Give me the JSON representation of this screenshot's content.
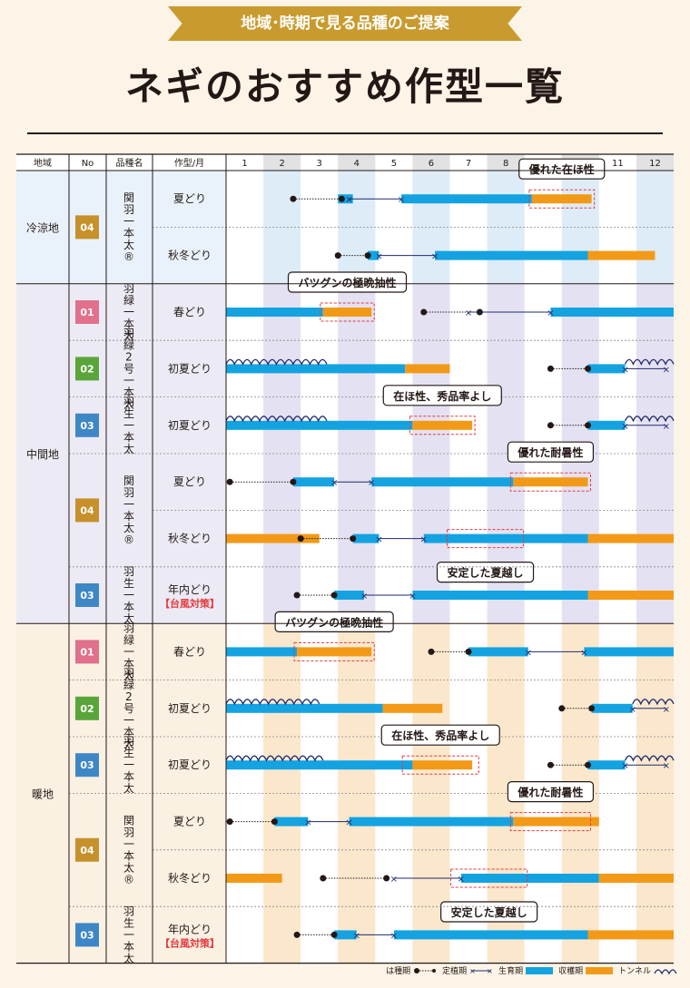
{
  "banner": "地域･時期で見る品種のご提案",
  "title": "ネギのおすすめ作型一覧",
  "headers": {
    "region": "地域",
    "no": "No",
    "variety": "品種名",
    "crop_type": "作型/月"
  },
  "months": [
    "1",
    "2",
    "3",
    "4",
    "5",
    "6",
    "7",
    "8",
    "9",
    "10",
    "11",
    "12"
  ],
  "regions": [
    {
      "name": "冷涼地",
      "rows": [
        {
          "no": "04",
          "color": "#c6902b",
          "variety": "関羽一本太®",
          "type": "夏どり",
          "sub": "",
          "sow": [
            {
              "a": 1.8,
              "b": 3.1
            }
          ],
          "plant": [
            {
              "a": 3.3,
              "b": 4.7
            }
          ],
          "grow": [
            {
              "a": 3.0,
              "b": 3.4
            },
            {
              "a": 4.7,
              "b": 8.2
            }
          ],
          "harvest": [
            {
              "a": 8.2,
              "b": 9.8
            }
          ],
          "tunnel": [],
          "callout": {
            "text": "優れた在ほ性",
            "at": 8.2,
            "to": 9.8
          }
        },
        {
          "no": "",
          "color": "",
          "variety": "",
          "type": "秋冬どり",
          "sub": "",
          "sow": [
            {
              "a": 3.0,
              "b": 3.8
            }
          ],
          "plant": [
            {
              "a": 4.1,
              "b": 5.6
            }
          ],
          "grow": [
            {
              "a": 3.8,
              "b": 4.1
            },
            {
              "a": 5.6,
              "b": 9.7
            }
          ],
          "harvest": [
            {
              "a": 9.7,
              "b": 11.5
            }
          ],
          "tunnel": [],
          "callout": null
        }
      ]
    },
    {
      "name": "中間地",
      "rows": [
        {
          "no": "01",
          "color": "#e0708b",
          "variety": "羽緑一本太",
          "type": "春どり",
          "sub": "",
          "sow": [
            {
              "a": 5.3,
              "b": 6.8
            }
          ],
          "plant": [
            {
              "a": 6.5,
              "b": 8.7
            }
          ],
          "grow": [
            {
              "a": 0,
              "b": 2.6
            },
            {
              "a": 8.7,
              "b": 12
            }
          ],
          "harvest": [
            {
              "a": 2.6,
              "b": 3.9
            }
          ],
          "tunnel": [],
          "callout": {
            "text": "バツグンの極晩抽性",
            "at": 2.6,
            "to": 3.9
          }
        },
        {
          "no": "02",
          "color": "#5aa53a",
          "variety": "羽緑2号一本太",
          "type": "初夏どり",
          "sub": "",
          "sow": [
            {
              "a": 8.7,
              "b": 9.7
            }
          ],
          "plant": [
            {
              "a": 10.7,
              "b": 11.8
            }
          ],
          "grow": [
            {
              "a": 0,
              "b": 4.8
            },
            {
              "a": 9.7,
              "b": 10.7
            }
          ],
          "harvest": [
            {
              "a": 4.8,
              "b": 6
            }
          ],
          "tunnel": [
            {
              "a": 0,
              "b": 2.7
            },
            {
              "a": 10.7,
              "b": 12
            }
          ],
          "callout": null
        },
        {
          "no": "03",
          "color": "#3e87c6",
          "variety": "羽生一本太",
          "type": "初夏どり",
          "sub": "",
          "sow": [
            {
              "a": 8.7,
              "b": 9.7
            }
          ],
          "plant": [
            {
              "a": 10.7,
              "b": 11.8
            }
          ],
          "grow": [
            {
              "a": 0,
              "b": 5
            },
            {
              "a": 9.7,
              "b": 10.7
            }
          ],
          "harvest": [
            {
              "a": 5,
              "b": 6.6
            }
          ],
          "tunnel": [
            {
              "a": 0,
              "b": 2.7
            },
            {
              "a": 10.7,
              "b": 12
            }
          ],
          "callout": {
            "text": "在ほ性、秀品率よし",
            "at": 5,
            "to": 6.6
          }
        },
        {
          "no": "04",
          "color": "#c6902b",
          "variety": "関羽一本太®",
          "type": "夏どり",
          "sub": "",
          "sow": [
            {
              "a": 0.1,
              "b": 1.8
            }
          ],
          "plant": [
            {
              "a": 2.9,
              "b": 3.9
            }
          ],
          "grow": [
            {
              "a": 1.8,
              "b": 2.9
            },
            {
              "a": 3.9,
              "b": 7.7
            }
          ],
          "harvest": [
            {
              "a": 7.7,
              "b": 9.7
            }
          ],
          "tunnel": [],
          "callout": {
            "text": "優れた耐暑性",
            "at": 7.7,
            "to": 9.7
          }
        },
        {
          "no": "",
          "color": "",
          "variety": "",
          "type": "秋冬どり",
          "sub": "",
          "sow": [
            {
              "a": 2,
              "b": 3.4
            }
          ],
          "plant": [
            {
              "a": 4.1,
              "b": 5.3
            }
          ],
          "grow": [
            {
              "a": 3.4,
              "b": 4.1
            },
            {
              "a": 5.3,
              "b": 9.7
            }
          ],
          "harvest": [
            {
              "a": 0,
              "b": 2.5
            },
            {
              "a": 9.7,
              "b": 12
            }
          ],
          "tunnel": [],
          "callout": {
            "text": "安定した夏越し",
            "at": 6,
            "to": 7.9
          }
        },
        {
          "no": "03",
          "color": "#3e87c6",
          "variety": "羽生一本太",
          "type": "年内どり",
          "sub": "【台風対策】",
          "sow": [
            {
              "a": 1.9,
              "b": 2.9
            }
          ],
          "plant": [
            {
              "a": 3.7,
              "b": 5
            }
          ],
          "grow": [
            {
              "a": 2.9,
              "b": 3.7
            },
            {
              "a": 5,
              "b": 9.7
            }
          ],
          "harvest": [
            {
              "a": 9.7,
              "b": 12
            }
          ],
          "tunnel": [],
          "callout": null
        }
      ]
    },
    {
      "name": "暖地",
      "rows": [
        {
          "no": "01",
          "color": "#e0708b",
          "variety": "羽緑一本太",
          "type": "春どり",
          "sub": "",
          "sow": [
            {
              "a": 5.5,
              "b": 6.5
            }
          ],
          "plant": [
            {
              "a": 8.1,
              "b": 9.6
            }
          ],
          "grow": [
            {
              "a": 0,
              "b": 1.9
            },
            {
              "a": 6.5,
              "b": 8.1
            },
            {
              "a": 9.6,
              "b": 12
            }
          ],
          "harvest": [
            {
              "a": 1.9,
              "b": 3.9
            }
          ],
          "tunnel": [],
          "callout": {
            "text": "バツグンの極晩抽性",
            "at": 1.9,
            "to": 3.9
          }
        },
        {
          "no": "02",
          "color": "#5aa53a",
          "variety": "羽緑2号一本太",
          "type": "初夏どり",
          "sub": "",
          "sow": [
            {
              "a": 9,
              "b": 9.8
            }
          ],
          "plant": [
            {
              "a": 10.9,
              "b": 11.8
            }
          ],
          "grow": [
            {
              "a": 0,
              "b": 4.2
            },
            {
              "a": 9.8,
              "b": 10.9
            }
          ],
          "harvest": [
            {
              "a": 4.2,
              "b": 5.8
            }
          ],
          "tunnel": [
            {
              "a": 0,
              "b": 2.5
            },
            {
              "a": 10.9,
              "b": 12
            }
          ],
          "callout": null
        },
        {
          "no": "03",
          "color": "#3e87c6",
          "variety": "羽生一本太",
          "type": "初夏どり",
          "sub": "",
          "sow": [
            {
              "a": 8.7,
              "b": 9.7
            }
          ],
          "plant": [
            {
              "a": 10.7,
              "b": 11.8
            }
          ],
          "grow": [
            {
              "a": 0,
              "b": 5
            },
            {
              "a": 9.7,
              "b": 10.7
            }
          ],
          "harvest": [
            {
              "a": 5,
              "b": 6.6
            }
          ],
          "tunnel": [
            {
              "a": 0,
              "b": 2.6
            },
            {
              "a": 10.7,
              "b": 12
            }
          ],
          "callout": {
            "text": "在ほ性、秀品率よし",
            "at": 4.8,
            "to": 6.7
          }
        },
        {
          "no": "04",
          "color": "#c6902b",
          "variety": "関羽一本太®",
          "type": "夏どり",
          "sub": "",
          "sow": [
            {
              "a": 0.1,
              "b": 1.3
            }
          ],
          "plant": [
            {
              "a": 2.2,
              "b": 3.3
            }
          ],
          "grow": [
            {
              "a": 1.3,
              "b": 2.2
            },
            {
              "a": 3.3,
              "b": 7.7
            }
          ],
          "harvest": [
            {
              "a": 7.7,
              "b": 10
            }
          ],
          "tunnel": [],
          "callout": {
            "text": "優れた耐暑性",
            "at": 7.7,
            "to": 9.7
          }
        },
        {
          "no": "",
          "color": "",
          "variety": "",
          "type": "秋冬どり",
          "sub": "",
          "sow": [
            {
              "a": 2.6,
              "b": 4.3
            }
          ],
          "plant": [
            {
              "a": 4.5,
              "b": 6.3
            }
          ],
          "grow": [
            {
              "a": 6.3,
              "b": 10
            }
          ],
          "harvest": [
            {
              "a": 0,
              "b": 1.5
            },
            {
              "a": 10,
              "b": 12
            }
          ],
          "tunnel": [],
          "callout": {
            "text": "安定した夏越し",
            "at": 6.1,
            "to": 8
          }
        },
        {
          "no": "03",
          "color": "#3e87c6",
          "variety": "羽生一本太",
          "type": "年内どり",
          "sub": "【台風対策】",
          "sow": [
            {
              "a": 1.9,
              "b": 2.9
            }
          ],
          "plant": [
            {
              "a": 3.5,
              "b": 4.5
            }
          ],
          "grow": [
            {
              "a": 2.9,
              "b": 3.5
            },
            {
              "a": 4.5,
              "b": 9.7
            }
          ],
          "harvest": [
            {
              "a": 9.7,
              "b": 12
            }
          ],
          "tunnel": [],
          "callout": null
        }
      ]
    }
  ],
  "legend": {
    "sow": "は種期",
    "plant": "定植期",
    "grow": "生育期",
    "harvest": "収穫期",
    "tunnel": "トンネル"
  },
  "colors": {
    "grow": "#14a3e0",
    "harvest": "#f29a17",
    "line": "#1d2a6e",
    "cold": "#ddecf7",
    "mid": "#e4e1f2",
    "warm": "#fbe7cc"
  }
}
